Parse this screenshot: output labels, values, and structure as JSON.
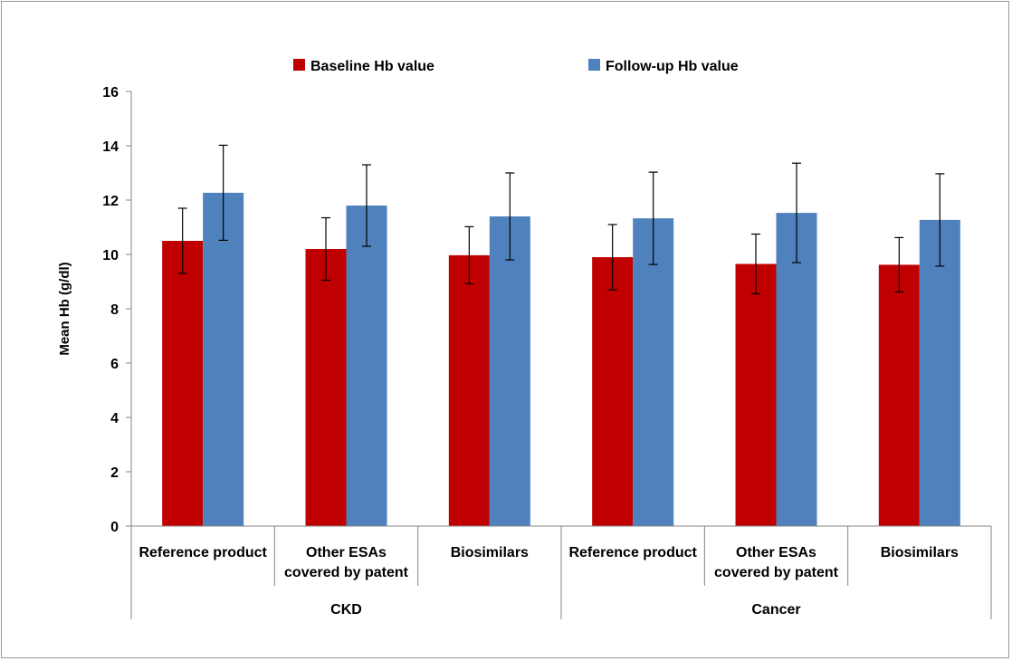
{
  "chart_data": {
    "type": "bar",
    "ylabel": "Mean Hb  (g/dl)",
    "ylim": [
      0,
      16
    ],
    "yticks": [
      "0",
      "2",
      "4",
      "6",
      "8",
      "10",
      "12",
      "14",
      "16"
    ],
    "grid": false,
    "legend_position": "top",
    "categories": [
      [
        "Reference product"
      ],
      [
        "Other ESAs",
        "covered by patent"
      ],
      [
        "Biosimilars"
      ],
      [
        "Reference product"
      ],
      [
        "Other ESAs",
        "covered by patent"
      ],
      [
        "Biosimilars"
      ]
    ],
    "groups": [
      {
        "label": "CKD",
        "count": 3
      },
      {
        "label": "Cancer",
        "count": 3
      }
    ],
    "series": [
      {
        "name": "Baseline Hb value",
        "color": "#c00000",
        "values": [
          10.5,
          10.2,
          9.97,
          9.9,
          9.65,
          9.62
        ],
        "error": [
          1.2,
          1.15,
          1.05,
          1.2,
          1.1,
          1.0
        ]
      },
      {
        "name": "Follow-up Hb value",
        "color": "#4f81bd",
        "values": [
          12.27,
          11.8,
          11.4,
          11.33,
          11.53,
          11.27
        ],
        "error": [
          1.75,
          1.5,
          1.6,
          1.7,
          1.83,
          1.7
        ]
      }
    ]
  }
}
